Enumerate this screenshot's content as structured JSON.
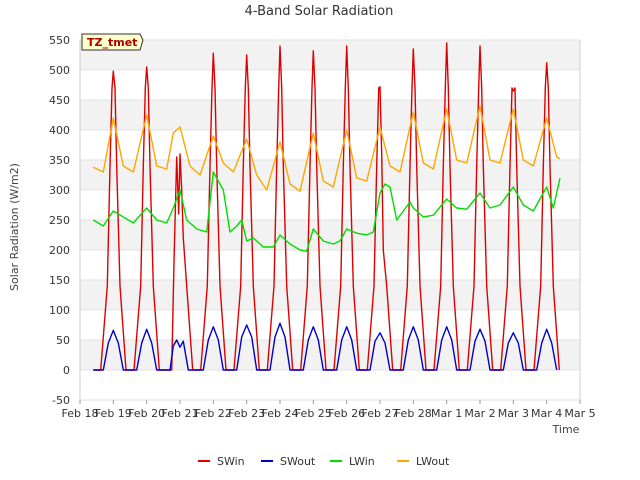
{
  "chart_data": {
    "type": "line",
    "title": "4-Band Solar Radiation",
    "xlabel": "Time",
    "ylabel": "Solar Radiation (W/m2)",
    "badge": "TZ_tmet",
    "ylim": [
      -50,
      550
    ],
    "yticks": [
      -50,
      0,
      50,
      100,
      150,
      200,
      250,
      300,
      350,
      400,
      450,
      500,
      550
    ],
    "xlim": [
      "Feb 18",
      "Mar 5"
    ],
    "xticks": [
      "Feb 18",
      "Feb 19",
      "Feb 20",
      "Feb 21",
      "Feb 22",
      "Feb 23",
      "Feb 24",
      "Feb 25",
      "Feb 26",
      "Feb 27",
      "Feb 28",
      "Mar 1",
      "Mar 2",
      "Mar 3",
      "Mar 4",
      "Mar 5"
    ],
    "grid": "horizontal bands",
    "legend_position": "bottom",
    "x_days": [
      0,
      1,
      2,
      3,
      4,
      5,
      6,
      7,
      8,
      9,
      10,
      11,
      12,
      13,
      14,
      15
    ],
    "series": [
      {
        "name": "SWin",
        "color": "#dd0000",
        "x": [
          0.4,
          0.62,
          0.82,
          0.9,
          0.96,
          1.0,
          1.05,
          1.1,
          1.2,
          1.38,
          1.62,
          1.82,
          1.9,
          1.96,
          2.0,
          2.05,
          2.1,
          2.2,
          2.38,
          2.62,
          2.75,
          2.82,
          2.9,
          2.96,
          3.0,
          3.05,
          3.1,
          3.2,
          3.38,
          3.62,
          3.82,
          3.9,
          3.96,
          4.0,
          4.05,
          4.1,
          4.2,
          4.38,
          4.62,
          4.82,
          4.9,
          4.96,
          5.0,
          5.05,
          5.1,
          5.2,
          5.38,
          5.62,
          5.82,
          5.9,
          5.96,
          6.0,
          6.05,
          6.1,
          6.2,
          6.38,
          6.62,
          6.82,
          6.9,
          6.96,
          7.0,
          7.05,
          7.1,
          7.2,
          7.38,
          7.62,
          7.82,
          7.9,
          7.96,
          8.0,
          8.05,
          8.1,
          8.2,
          8.38,
          8.62,
          8.82,
          8.9,
          8.96,
          9.0,
          9.05,
          9.1,
          9.2,
          9.38,
          9.62,
          9.82,
          9.9,
          9.96,
          10.0,
          10.05,
          10.1,
          10.2,
          10.38,
          10.62,
          10.82,
          10.9,
          10.96,
          11.0,
          11.05,
          11.1,
          11.2,
          11.38,
          11.62,
          11.82,
          11.9,
          11.96,
          12.0,
          12.05,
          12.1,
          12.2,
          12.38,
          12.62,
          12.82,
          12.9,
          12.96,
          13.0,
          13.05,
          13.1,
          13.2,
          13.38,
          13.62,
          13.82,
          13.9,
          13.96,
          14.0,
          14.05,
          14.1,
          14.2,
          14.38
        ],
        "y": [
          0,
          0,
          140,
          340,
          470,
          498,
          470,
          340,
          140,
          0,
          0,
          140,
          340,
          470,
          505,
          470,
          340,
          140,
          0,
          0,
          0,
          180,
          355,
          260,
          360,
          300,
          220,
          140,
          0,
          0,
          140,
          340,
          470,
          528,
          470,
          340,
          140,
          0,
          0,
          140,
          340,
          470,
          525,
          470,
          340,
          140,
          0,
          0,
          140,
          340,
          470,
          540,
          470,
          340,
          140,
          0,
          0,
          140,
          340,
          470,
          532,
          470,
          340,
          140,
          0,
          0,
          140,
          340,
          470,
          540,
          470,
          340,
          140,
          0,
          0,
          140,
          340,
          470,
          472,
          360,
          200,
          140,
          0,
          0,
          140,
          340,
          470,
          535,
          470,
          340,
          140,
          0,
          0,
          140,
          340,
          470,
          545,
          470,
          340,
          140,
          0,
          0,
          140,
          340,
          470,
          540,
          470,
          340,
          140,
          0,
          0,
          140,
          340,
          470,
          465,
          470,
          340,
          140,
          0,
          0,
          140,
          340,
          470,
          512,
          470,
          340,
          140,
          0
        ]
      },
      {
        "name": "SWout",
        "color": "#0000cc",
        "x": [
          0.4,
          0.7,
          0.85,
          1.0,
          1.15,
          1.3,
          1.7,
          1.85,
          2.0,
          2.15,
          2.3,
          2.7,
          2.8,
          2.9,
          3.0,
          3.1,
          3.25,
          3.7,
          3.85,
          4.0,
          4.15,
          4.3,
          4.7,
          4.85,
          5.0,
          5.15,
          5.3,
          5.7,
          5.85,
          6.0,
          6.15,
          6.3,
          6.7,
          6.85,
          7.0,
          7.15,
          7.3,
          7.7,
          7.85,
          8.0,
          8.15,
          8.3,
          8.7,
          8.85,
          9.0,
          9.15,
          9.3,
          9.7,
          9.85,
          10.0,
          10.15,
          10.3,
          10.7,
          10.85,
          11.0,
          11.15,
          11.3,
          11.7,
          11.85,
          12.0,
          12.15,
          12.3,
          12.7,
          12.85,
          13.0,
          13.15,
          13.3,
          13.7,
          13.85,
          14.0,
          14.15,
          14.3
        ],
        "y": [
          0,
          0,
          45,
          66,
          45,
          0,
          0,
          45,
          68,
          45,
          0,
          0,
          40,
          50,
          38,
          48,
          0,
          0,
          50,
          72,
          50,
          0,
          0,
          55,
          75,
          55,
          0,
          0,
          55,
          78,
          55,
          0,
          0,
          50,
          72,
          50,
          0,
          0,
          50,
          72,
          50,
          0,
          0,
          48,
          62,
          45,
          0,
          0,
          50,
          72,
          50,
          0,
          0,
          50,
          72,
          50,
          0,
          0,
          48,
          68,
          48,
          0,
          0,
          45,
          62,
          45,
          0,
          0,
          45,
          68,
          45,
          0
        ]
      },
      {
        "name": "LWin",
        "color": "#00dd00",
        "x": [
          0.4,
          0.7,
          1.0,
          1.3,
          1.6,
          2.0,
          2.3,
          2.6,
          2.8,
          3.0,
          3.2,
          3.5,
          3.8,
          4.0,
          4.3,
          4.5,
          4.7,
          4.85,
          5.0,
          5.2,
          5.5,
          5.8,
          6.0,
          6.3,
          6.6,
          6.8,
          7.0,
          7.3,
          7.6,
          7.8,
          8.0,
          8.3,
          8.6,
          8.8,
          9.0,
          9.15,
          9.3,
          9.5,
          9.7,
          9.9,
          10.0,
          10.3,
          10.6,
          11.0,
          11.3,
          11.6,
          12.0,
          12.3,
          12.6,
          13.0,
          13.3,
          13.6,
          14.0,
          14.2,
          14.4
        ],
        "y": [
          250,
          240,
          265,
          255,
          245,
          270,
          250,
          245,
          270,
          300,
          250,
          235,
          230,
          330,
          300,
          230,
          240,
          250,
          215,
          220,
          205,
          205,
          225,
          210,
          200,
          198,
          235,
          215,
          210,
          215,
          235,
          228,
          225,
          230,
          295,
          310,
          305,
          250,
          265,
          280,
          270,
          255,
          258,
          285,
          270,
          268,
          295,
          270,
          275,
          305,
          275,
          265,
          305,
          270,
          320
        ]
      },
      {
        "name": "LWout",
        "color": "#ffa500",
        "x": [
          0.4,
          0.7,
          1.0,
          1.3,
          1.6,
          2.0,
          2.3,
          2.6,
          2.8,
          3.0,
          3.3,
          3.6,
          4.0,
          4.3,
          4.6,
          5.0,
          5.3,
          5.6,
          6.0,
          6.3,
          6.6,
          7.0,
          7.3,
          7.6,
          8.0,
          8.3,
          8.6,
          9.0,
          9.3,
          9.6,
          10.0,
          10.3,
          10.6,
          11.0,
          11.3,
          11.6,
          12.0,
          12.3,
          12.6,
          13.0,
          13.3,
          13.6,
          14.0,
          14.3,
          14.4
        ],
        "y": [
          338,
          330,
          420,
          340,
          330,
          425,
          340,
          335,
          395,
          405,
          340,
          325,
          390,
          345,
          330,
          385,
          325,
          300,
          380,
          310,
          298,
          395,
          315,
          305,
          400,
          320,
          315,
          405,
          340,
          330,
          430,
          345,
          335,
          435,
          350,
          345,
          440,
          350,
          345,
          435,
          350,
          340,
          420,
          355,
          352
        ]
      }
    ]
  }
}
